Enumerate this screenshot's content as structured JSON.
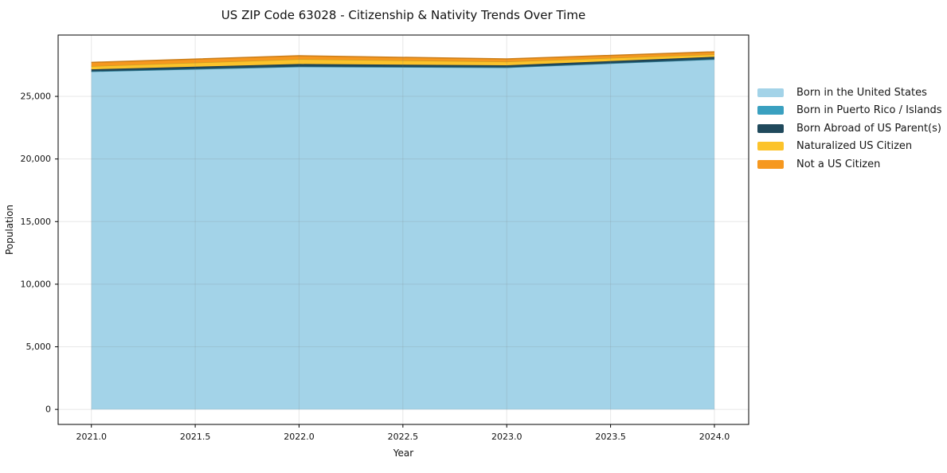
{
  "title": "US ZIP Code 63028 - Citizenship & Nativity Trends Over Time",
  "chart_data": {
    "type": "area",
    "stacked": true,
    "title": "US ZIP Code 63028 - Citizenship & Nativity Trends Over Time",
    "xlabel": "Year",
    "ylabel": "Population",
    "x": [
      2021,
      2022,
      2023,
      2024
    ],
    "series": [
      {
        "name": "Born in the United States",
        "color": "#a3d3e8",
        "values": [
          26990,
          27370,
          27310,
          27960
        ]
      },
      {
        "name": "Born in Puerto Rico / Islands",
        "color": "#3aa0c0",
        "values": [
          10,
          10,
          10,
          10
        ]
      },
      {
        "name": "Born Abroad of US Parent(s)",
        "color": "#20495c",
        "values": [
          160,
          205,
          160,
          190
        ]
      },
      {
        "name": "Naturalized US Citizen",
        "color": "#fcc32b",
        "values": [
          255,
          385,
          300,
          200
        ]
      },
      {
        "name": "Not a US Citizen",
        "color": "#f6981f",
        "values": [
          300,
          275,
          210,
          200
        ]
      }
    ],
    "x_tick_labels": [
      "2021.0",
      "2021.5",
      "2022.0",
      "2022.5",
      "2023.0",
      "2023.5",
      "2024.0"
    ],
    "x_tick_values": [
      2021,
      2021.5,
      2022,
      2022.5,
      2023,
      2023.5,
      2024
    ],
    "y_tick_labels": [
      "0",
      "5,000",
      "10,000",
      "15,000",
      "20,000",
      "25,000"
    ],
    "y_tick_values": [
      0,
      5000,
      10000,
      15000,
      20000,
      25000
    ],
    "xlim": [
      2020.84,
      2024.165
    ],
    "ylim": [
      -1200,
      29900
    ],
    "grid": true,
    "legend_position": "outside-right"
  },
  "colors": {
    "background": "#ffffff",
    "spine": "#000000",
    "grid": "rgba(120,120,120,0.18)",
    "tick": "#000000",
    "text": "#111111"
  }
}
